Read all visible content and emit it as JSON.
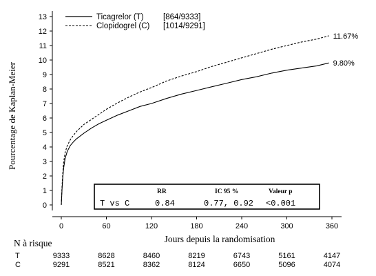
{
  "chart_data": {
    "type": "line",
    "ylabel": "Pourcentage de Kaplan-Meier",
    "xlabel": "Jours depuis la randomisation",
    "xlim": [
      0,
      360
    ],
    "ylim": [
      0,
      13
    ],
    "x_ticks": [
      0,
      60,
      120,
      180,
      240,
      300,
      360
    ],
    "y_ticks": [
      0,
      1,
      2,
      3,
      4,
      5,
      6,
      7,
      8,
      9,
      10,
      11,
      12,
      13
    ],
    "grid": false,
    "legend_position": "top-left",
    "series": [
      {
        "name": "Ticagrelor (T)",
        "legend_count": "[864/9333]",
        "line_style": "solid",
        "end_label": "9.80%",
        "points": [
          [
            0,
            0
          ],
          [
            1,
            1.1
          ],
          [
            2,
            1.9
          ],
          [
            3,
            2.5
          ],
          [
            5,
            3.2
          ],
          [
            8,
            3.7
          ],
          [
            12,
            4.1
          ],
          [
            16,
            4.35
          ],
          [
            20,
            4.55
          ],
          [
            30,
            4.95
          ],
          [
            40,
            5.3
          ],
          [
            50,
            5.6
          ],
          [
            60,
            5.85
          ],
          [
            75,
            6.2
          ],
          [
            90,
            6.5
          ],
          [
            105,
            6.8
          ],
          [
            120,
            7.0
          ],
          [
            140,
            7.35
          ],
          [
            160,
            7.65
          ],
          [
            180,
            7.9
          ],
          [
            200,
            8.15
          ],
          [
            220,
            8.4
          ],
          [
            240,
            8.65
          ],
          [
            260,
            8.85
          ],
          [
            280,
            9.1
          ],
          [
            300,
            9.3
          ],
          [
            320,
            9.45
          ],
          [
            340,
            9.6
          ],
          [
            356,
            9.8
          ]
        ]
      },
      {
        "name": "Clopidogrel (C)",
        "legend_count": "[1014/9291]",
        "line_style": "dashed",
        "end_label": "11.67%",
        "points": [
          [
            0,
            0
          ],
          [
            1,
            1.3
          ],
          [
            2,
            2.2
          ],
          [
            3,
            2.9
          ],
          [
            5,
            3.6
          ],
          [
            8,
            4.1
          ],
          [
            12,
            4.5
          ],
          [
            16,
            4.8
          ],
          [
            20,
            5.05
          ],
          [
            30,
            5.55
          ],
          [
            40,
            5.9
          ],
          [
            50,
            6.25
          ],
          [
            60,
            6.6
          ],
          [
            75,
            7.05
          ],
          [
            90,
            7.45
          ],
          [
            105,
            7.8
          ],
          [
            120,
            8.1
          ],
          [
            140,
            8.55
          ],
          [
            160,
            8.9
          ],
          [
            180,
            9.2
          ],
          [
            200,
            9.55
          ],
          [
            220,
            9.85
          ],
          [
            240,
            10.15
          ],
          [
            260,
            10.45
          ],
          [
            280,
            10.75
          ],
          [
            300,
            11.0
          ],
          [
            320,
            11.25
          ],
          [
            340,
            11.45
          ],
          [
            356,
            11.67
          ]
        ]
      }
    ],
    "stats_box": {
      "headers": [
        "RR",
        "IC 95 %",
        "Valeur p"
      ],
      "row_label": "T vs C",
      "values": [
        "0.84",
        "0.77, 0.92",
        "<0.001"
      ]
    },
    "risk_table": {
      "title": "N à risque",
      "rows": [
        {
          "label": "T",
          "values": [
            "9333",
            "8628",
            "8460",
            "8219",
            "6743",
            "5161",
            "4147"
          ]
        },
        {
          "label": "C",
          "values": [
            "9291",
            "8521",
            "8362",
            "8124",
            "6650",
            "5096",
            "4074"
          ]
        }
      ]
    }
  }
}
